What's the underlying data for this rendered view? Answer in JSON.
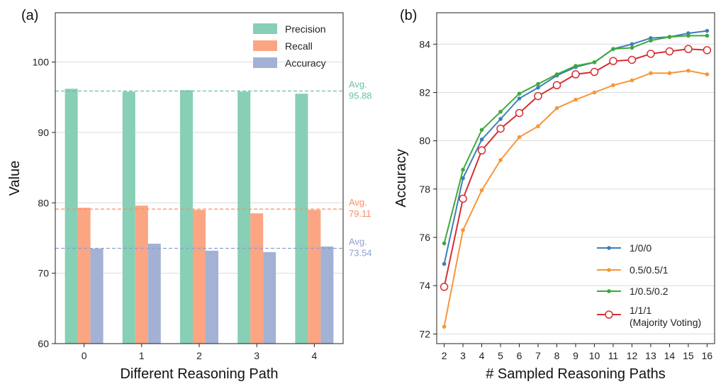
{
  "chart_data": [
    {
      "panel_label": "(a)",
      "type": "bar",
      "xlabel": "Different Reasoning Path",
      "ylabel": "Value",
      "ylim": [
        60,
        107
      ],
      "yticks": [
        60,
        70,
        80,
        90,
        100
      ],
      "grid": true,
      "legend_position": "top-right",
      "categories": [
        "0",
        "1",
        "2",
        "3",
        "4"
      ],
      "series": [
        {
          "name": "Precision",
          "color": "#87cfb5",
          "values": [
            96.2,
            95.8,
            96.0,
            95.8,
            95.5
          ]
        },
        {
          "name": "Recall",
          "color": "#fba583",
          "values": [
            79.3,
            79.6,
            79.0,
            78.5,
            79.0
          ]
        },
        {
          "name": "Accuracy",
          "color": "#a3b1d5",
          "values": [
            73.5,
            74.2,
            73.2,
            73.0,
            73.8
          ]
        }
      ],
      "averages": [
        {
          "label": "Avg.",
          "value_text": "95.88",
          "value": 95.88,
          "color": "#66c2a5"
        },
        {
          "label": "Avg.",
          "value_text": "79.11",
          "value": 79.11,
          "color": "#fc8d62"
        },
        {
          "label": "Avg.",
          "value_text": "73.54",
          "value": 73.54,
          "color": "#8da0cb"
        }
      ]
    },
    {
      "panel_label": "(b)",
      "type": "line",
      "xlabel": "# Sampled Reasoning Paths",
      "ylabel": "Accuracy",
      "xlim": [
        1.6,
        16.4
      ],
      "ylim": [
        71.6,
        85.3
      ],
      "xticks": [
        2,
        3,
        4,
        5,
        6,
        7,
        8,
        9,
        10,
        11,
        12,
        13,
        14,
        15,
        16
      ],
      "yticks": [
        72,
        74,
        76,
        78,
        80,
        82,
        84
      ],
      "grid": true,
      "legend_position": "bottom-right",
      "x": [
        2,
        3,
        4,
        5,
        6,
        7,
        8,
        9,
        10,
        11,
        12,
        13,
        14,
        15,
        16
      ],
      "series": [
        {
          "name": "1/0/0",
          "color": "#3d7fb8",
          "marker": "dot",
          "values": [
            74.9,
            78.45,
            80.05,
            80.9,
            81.75,
            82.2,
            82.7,
            83.05,
            83.25,
            83.8,
            84.0,
            84.25,
            84.3,
            84.45,
            84.55
          ]
        },
        {
          "name": "0.5/0.5/1",
          "color": "#f7963a",
          "marker": "dot",
          "values": [
            72.3,
            76.3,
            77.95,
            79.2,
            80.15,
            80.6,
            81.35,
            81.7,
            82.0,
            82.3,
            82.5,
            82.8,
            82.8,
            82.9,
            82.75
          ]
        },
        {
          "name": "1/0.5/0.2",
          "color": "#3ea83a",
          "marker": "dot",
          "values": [
            75.75,
            78.8,
            80.45,
            81.2,
            81.95,
            82.35,
            82.75,
            83.1,
            83.25,
            83.8,
            83.85,
            84.15,
            84.3,
            84.35,
            84.35
          ]
        },
        {
          "name": "1/1/1",
          "name_note": "(Majority Voting)",
          "color": "#d62f33",
          "marker": "open-circle",
          "values": [
            73.95,
            77.6,
            79.6,
            80.5,
            81.15,
            81.85,
            82.3,
            82.75,
            82.85,
            83.3,
            83.35,
            83.6,
            83.7,
            83.8,
            83.75
          ]
        }
      ]
    }
  ]
}
